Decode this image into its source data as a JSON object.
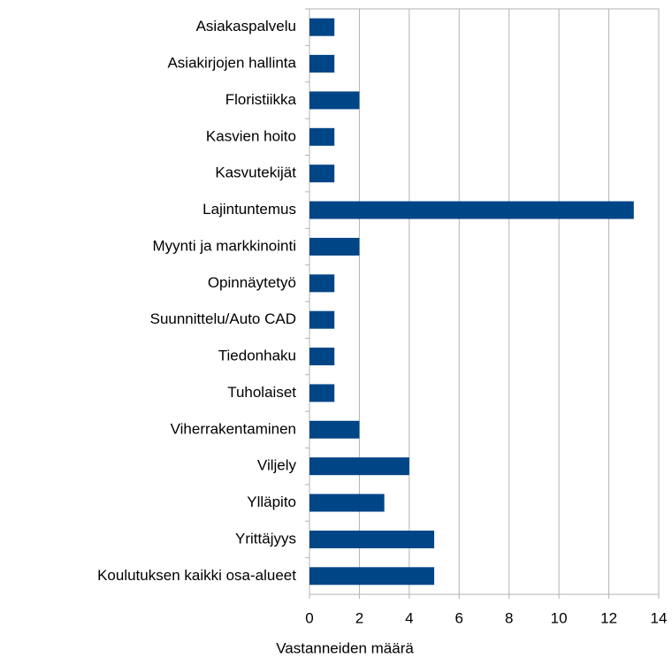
{
  "chart_data": {
    "type": "bar",
    "orientation": "horizontal",
    "categories": [
      "Asiakaspalvelu",
      "Asiakirjojen hallinta",
      "Floristiikka",
      "Kasvien hoito",
      "Kasvutekijät",
      "Lajintuntemus",
      "Myynti ja markkinointi",
      "Opinnäytetyö",
      "Suunnittelu/Auto CAD",
      "Tiedonhaku",
      "Tuholaiset",
      "Viherrakentaminen",
      "Viljely",
      "Ylläpito",
      "Yrittäjyys",
      "Koulutuksen kaikki osa-alueet"
    ],
    "values": [
      1,
      1,
      2,
      1,
      1,
      13,
      2,
      1,
      1,
      1,
      1,
      2,
      4,
      3,
      5,
      5
    ],
    "color": "#004586",
    "xlabel": "Vastanneiden määrä",
    "xlim": [
      0,
      14
    ],
    "xticks": [
      0,
      2,
      4,
      6,
      8,
      10,
      12,
      14
    ],
    "grid": true
  }
}
